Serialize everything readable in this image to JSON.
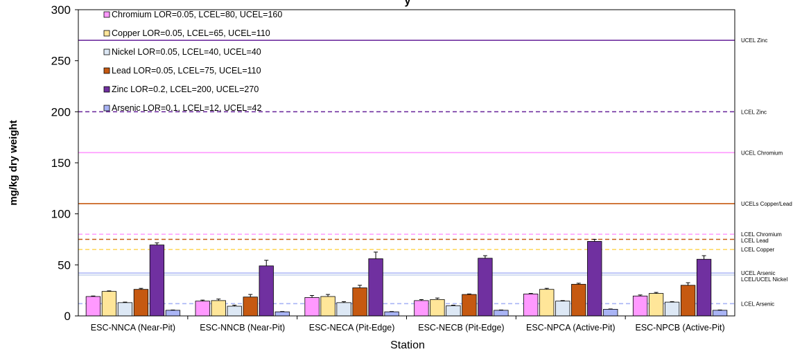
{
  "chart_data": {
    "type": "bar",
    "title": "y",
    "xlabel": "Station",
    "ylabel": "mg/kg dry weight",
    "ylim": [
      0,
      300
    ],
    "yticks": [
      0,
      50,
      100,
      150,
      200,
      250,
      300
    ],
    "grid": false,
    "legend_position": "top-left",
    "categories": [
      "ESC-NNCA (Near-Pit)",
      "ESC-NNCB (Near-Pit)",
      "ESC-NECA (Pit-Edge)",
      "ESC-NECB (Pit-Edge)",
      "ESC-NPCA (Active-Pit)",
      "ESC-NPCB (Active-Pit)"
    ],
    "series": [
      {
        "name": "Chromium LOR=0.05, LCEL=80, UCEL=160",
        "color": "#ff99ff",
        "values": [
          19,
          14.5,
          18,
          15,
          21.5,
          19.5
        ],
        "errors": [
          0.5,
          1,
          2,
          1,
          0.5,
          1
        ]
      },
      {
        "name": "Copper LOR=0.05, LCEL=65, UCEL=110",
        "color": "#ffe699",
        "values": [
          24,
          15,
          19,
          16,
          26,
          22
        ],
        "errors": [
          0.5,
          1.5,
          2,
          1.5,
          1,
          1
        ]
      },
      {
        "name": "Nickel LOR=0.05, LCEL=40, UCEL=40",
        "color": "#dde8f5",
        "values": [
          13,
          9.5,
          13,
          10,
          14.5,
          13.5
        ],
        "errors": [
          0.5,
          1,
          1,
          0.5,
          0.5,
          0.5
        ]
      },
      {
        "name": "Lead LOR=0.05, LCEL=75, UCEL=110",
        "color": "#c65911",
        "values": [
          26,
          18.5,
          27.5,
          21,
          31,
          30
        ],
        "errors": [
          1,
          2.5,
          2.5,
          0.5,
          1,
          2.5
        ]
      },
      {
        "name": "Zinc LOR=0.2, LCEL=200, UCEL=270",
        "color": "#7030a0",
        "values": [
          69.5,
          49,
          56,
          56.5,
          73,
          55.5
        ],
        "errors": [
          2,
          5.5,
          6.5,
          2.5,
          2,
          3.5
        ]
      },
      {
        "name": "Arsenic LOR=0.1, LCEL=12, UCEL=42",
        "color": "#a9b4f5",
        "values": [
          5.5,
          4,
          4,
          5.5,
          6.5,
          5.5
        ],
        "errors": [
          0.3,
          0.3,
          0.3,
          0.3,
          0.3,
          0.3
        ]
      }
    ],
    "reference_lines": [
      {
        "value": 270,
        "color": "#7030a0",
        "style": "solid",
        "label": "UCEL Zinc"
      },
      {
        "value": 200,
        "color": "#7030a0",
        "style": "dashed",
        "label": "LCEL Zinc"
      },
      {
        "value": 160,
        "color": "#ff99ff",
        "style": "solid",
        "label": "UCEL Chromium"
      },
      {
        "value": 110,
        "color": "#c65911",
        "style": "solid",
        "label": "UCELs Copper/Lead"
      },
      {
        "value": 80,
        "color": "#ff99ff",
        "style": "dashed",
        "label": "LCEL Chromium"
      },
      {
        "value": 75,
        "color": "#c65911",
        "style": "dashed",
        "label": "LCEL Lead"
      },
      {
        "value": 65,
        "color": "#ffd966",
        "style": "dashed",
        "label": "LCEL Copper"
      },
      {
        "value": 42,
        "color": "#a9b4f5",
        "style": "solid",
        "label": "UCEL Arsenic"
      },
      {
        "value": 40,
        "color": "#c9d6ee",
        "style": "solid",
        "label": "LCEL/UCEL Nickel"
      },
      {
        "value": 12,
        "color": "#a9b4f5",
        "style": "dashed",
        "label": "LCEL Arsenic"
      }
    ]
  }
}
